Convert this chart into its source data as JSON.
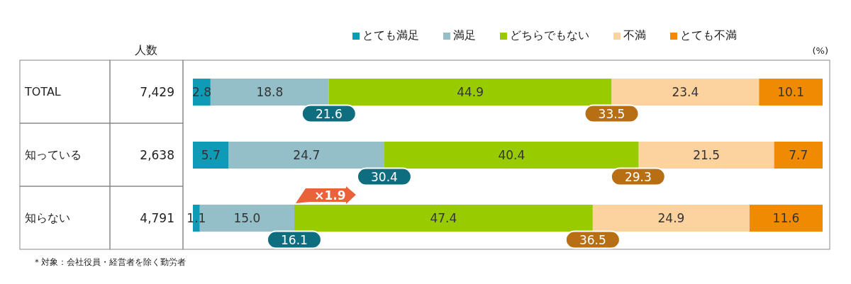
{
  "chart_data": {
    "type": "bar",
    "orientation": "horizontal",
    "stacked": true,
    "categories": [
      "TOTAL",
      "知っている",
      "知らない"
    ],
    "series": [
      {
        "name": "とても満足",
        "color": "#0f9ab5",
        "values": [
          2.8,
          5.7,
          1.1
        ],
        "value_labels": [
          "2.8",
          "5.7",
          "1.1"
        ]
      },
      {
        "name": "満足",
        "color": "#94bec8",
        "values": [
          18.8,
          24.7,
          15.0
        ],
        "value_labels": [
          "18.8",
          "24.7",
          "15.0"
        ]
      },
      {
        "name": "どちらでもない",
        "color": "#99cc00",
        "values": [
          44.9,
          40.4,
          47.4
        ],
        "value_labels": [
          "44.9",
          "40.4",
          "47.4"
        ]
      },
      {
        "name": "不満",
        "color": "#fcd29e",
        "values": [
          23.4,
          21.5,
          24.9
        ],
        "value_labels": [
          "23.4",
          "21.5",
          "24.9"
        ]
      },
      {
        "name": "とても不満",
        "color": "#f08a00",
        "values": [
          10.1,
          7.7,
          11.6
        ],
        "value_labels": [
          "10.1",
          "7.7",
          "11.6"
        ]
      }
    ],
    "xlim": [
      0,
      100
    ],
    "tick_labels": "y",
    "legend": "top",
    "marker": "square",
    "grid": false,
    "annotations": [
      "人数",
      "(%)",
      "＊対象：会社役員・経営者を除く勤労者",
      "×1.9",
      "7,429",
      "2,638",
      "4,791",
      {
        "text": "21.6",
        "x": 21.6,
        "y": "TOTAL"
      },
      {
        "text": "33.5",
        "x": 66.5,
        "y": "TOTAL"
      },
      {
        "text": "30.4",
        "x": 30.4,
        "y": "知っている"
      },
      {
        "text": "29.3",
        "x": 70.7,
        "y": "知っている"
      },
      {
        "text": "16.1",
        "x": 16.1,
        "y": "知らない"
      },
      {
        "text": "36.5",
        "x": 63.5,
        "y": "知らない"
      }
    ]
  }
}
